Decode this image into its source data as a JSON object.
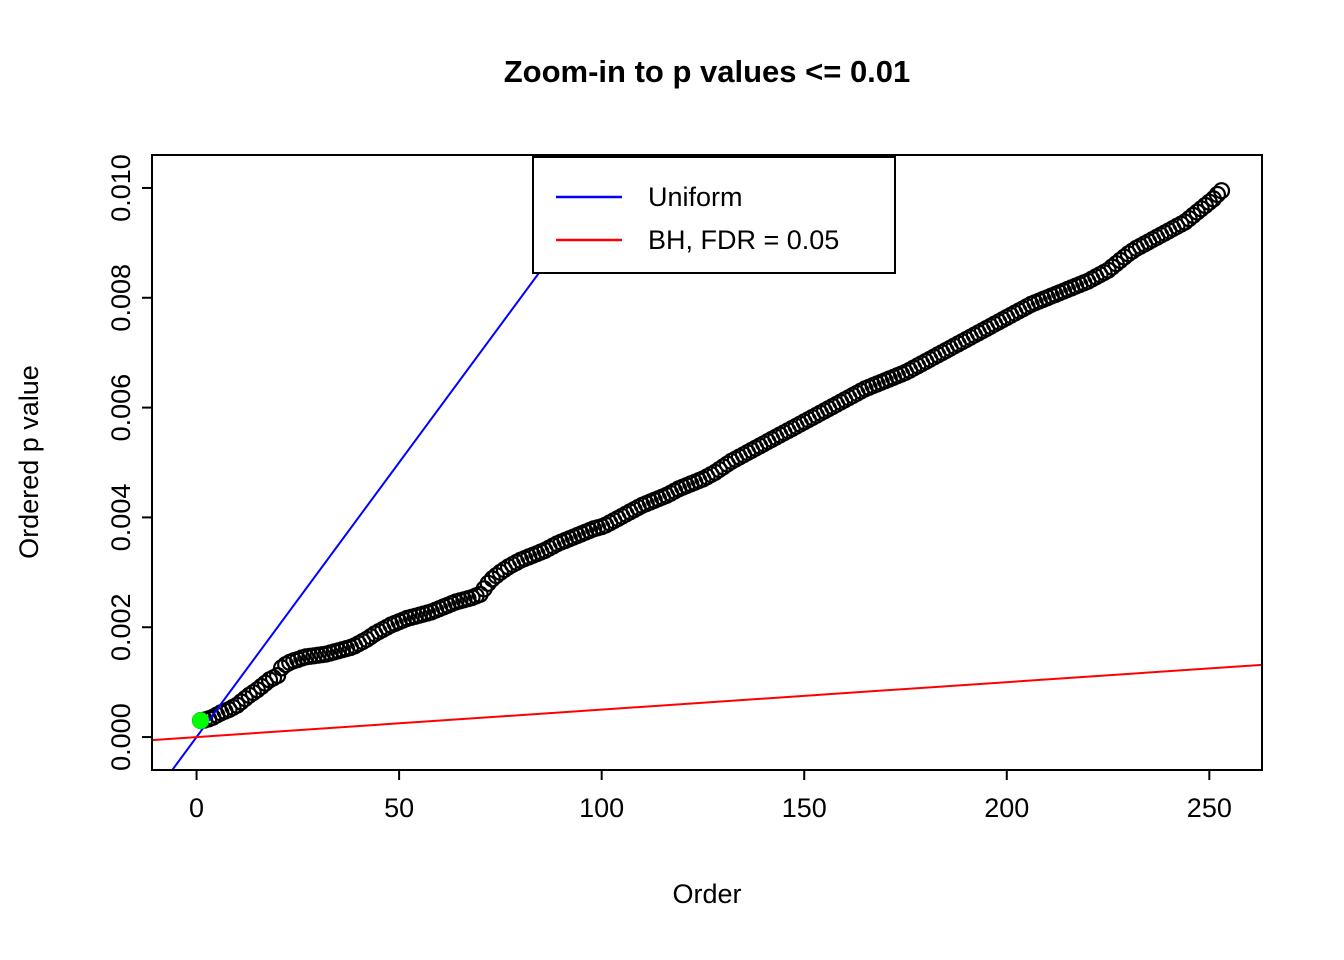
{
  "title": "Zoom-in to p values <= 0.01",
  "chart_data": {
    "type": "scatter",
    "title": "Zoom-in to p values <= 0.01",
    "xlabel": "Order",
    "ylabel": "Ordered p value",
    "xlim": [
      -11,
      263
    ],
    "ylim": [
      -0.0006,
      0.0106
    ],
    "x_ticks": [
      0,
      50,
      100,
      150,
      200,
      250
    ],
    "x_tick_labels": [
      "0",
      "50",
      "100",
      "150",
      "200",
      "250"
    ],
    "y_ticks": [
      0,
      0.002,
      0.004,
      0.006,
      0.008,
      0.01
    ],
    "y_tick_labels": [
      "0.000",
      "0.002",
      "0.004",
      "0.006",
      "0.008",
      "0.010"
    ],
    "grid": false,
    "point_style": {
      "shape": "open-circle",
      "color": "#000000"
    },
    "orders_start": 1,
    "n_points": 253,
    "p_values": [
      0.0003,
      0.00031,
      0.00033,
      0.00036,
      0.0004,
      0.00044,
      0.00047,
      0.0005,
      0.00054,
      0.00058,
      0.00064,
      0.0007,
      0.00076,
      0.00081,
      0.00086,
      0.00092,
      0.00098,
      0.00104,
      0.00108,
      0.00112,
      0.00126,
      0.00132,
      0.00136,
      0.00139,
      0.00141,
      0.00144,
      0.00146,
      0.00147,
      0.00148,
      0.00149,
      0.0015,
      0.00151,
      0.00153,
      0.00155,
      0.00157,
      0.00159,
      0.00161,
      0.00163,
      0.00166,
      0.0017,
      0.00174,
      0.00178,
      0.00183,
      0.00188,
      0.00192,
      0.00196,
      0.002,
      0.00204,
      0.00207,
      0.0021,
      0.00213,
      0.00216,
      0.00218,
      0.0022,
      0.00222,
      0.00224,
      0.00226,
      0.00228,
      0.00231,
      0.00234,
      0.00237,
      0.0024,
      0.00243,
      0.00246,
      0.00248,
      0.0025,
      0.00252,
      0.00254,
      0.00257,
      0.0026,
      0.0027,
      0.0028,
      0.00288,
      0.00294,
      0.003,
      0.00305,
      0.0031,
      0.00314,
      0.00318,
      0.00322,
      0.00325,
      0.00328,
      0.00331,
      0.00334,
      0.00337,
      0.0034,
      0.00344,
      0.00348,
      0.00352,
      0.00355,
      0.00358,
      0.00361,
      0.00364,
      0.00367,
      0.0037,
      0.00373,
      0.00376,
      0.00379,
      0.00381,
      0.00383,
      0.00386,
      0.0039,
      0.00394,
      0.00398,
      0.00402,
      0.00406,
      0.0041,
      0.00414,
      0.00418,
      0.00422,
      0.00425,
      0.00428,
      0.00431,
      0.00434,
      0.00437,
      0.0044,
      0.00444,
      0.00448,
      0.00452,
      0.00455,
      0.00458,
      0.00461,
      0.00464,
      0.00467,
      0.0047,
      0.00474,
      0.00478,
      0.00482,
      0.00487,
      0.00492,
      0.00497,
      0.00502,
      0.00506,
      0.0051,
      0.00514,
      0.00518,
      0.00522,
      0.00526,
      0.0053,
      0.00534,
      0.00538,
      0.00542,
      0.00546,
      0.0055,
      0.00554,
      0.00558,
      0.00562,
      0.00566,
      0.0057,
      0.00574,
      0.00578,
      0.00582,
      0.00586,
      0.0059,
      0.00594,
      0.00598,
      0.00602,
      0.00606,
      0.0061,
      0.00614,
      0.00618,
      0.00622,
      0.00626,
      0.0063,
      0.00634,
      0.00637,
      0.0064,
      0.00643,
      0.00646,
      0.00649,
      0.00652,
      0.00655,
      0.00658,
      0.00661,
      0.00664,
      0.00668,
      0.00672,
      0.00676,
      0.0068,
      0.00684,
      0.00688,
      0.00692,
      0.00696,
      0.007,
      0.00704,
      0.00708,
      0.00712,
      0.00716,
      0.0072,
      0.00724,
      0.00728,
      0.00732,
      0.00736,
      0.0074,
      0.00744,
      0.00748,
      0.00752,
      0.00756,
      0.0076,
      0.00764,
      0.00768,
      0.00772,
      0.00776,
      0.0078,
      0.00784,
      0.00788,
      0.00791,
      0.00794,
      0.00797,
      0.008,
      0.00803,
      0.00806,
      0.00809,
      0.00812,
      0.00815,
      0.00818,
      0.00821,
      0.00824,
      0.00827,
      0.0083,
      0.00834,
      0.00838,
      0.00842,
      0.00846,
      0.0085,
      0.00856,
      0.00862,
      0.00868,
      0.00874,
      0.0088,
      0.00885,
      0.0089,
      0.00894,
      0.00898,
      0.00902,
      0.00906,
      0.0091,
      0.00914,
      0.00918,
      0.00922,
      0.00926,
      0.0093,
      0.00934,
      0.00938,
      0.00944,
      0.0095,
      0.00956,
      0.00962,
      0.00968,
      0.00974,
      0.0098,
      0.00988,
      0.00995
    ],
    "highlight_point": {
      "order": 1,
      "p_value": 0.0003,
      "color": "#00FF00"
    },
    "lines": [
      {
        "name": "Uniform",
        "color": "#0000FF",
        "slope": 0.0001,
        "intercept": 0
      },
      {
        "name": "BH, FDR = 0.05",
        "color": "#FF0000",
        "slope": 5e-06,
        "intercept": 0
      }
    ],
    "legend": {
      "position": "top-center-inside",
      "entries": [
        {
          "label": "Uniform",
          "color": "#0000FF"
        },
        {
          "label": "BH, FDR = 0.05",
          "color": "#FF0000"
        }
      ]
    }
  }
}
